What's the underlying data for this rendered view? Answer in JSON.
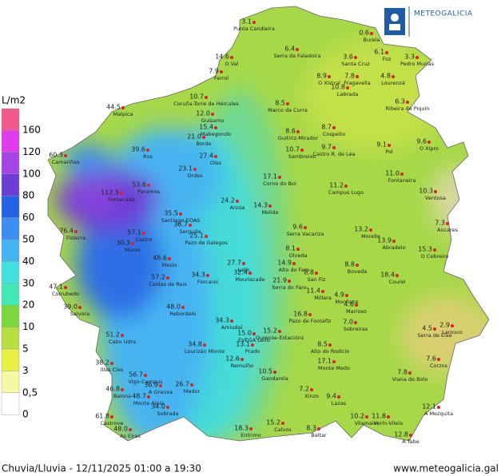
{
  "header": {
    "logo": "METEOGALICIA"
  },
  "legend": {
    "title": "L/m2",
    "labels": [
      "160",
      "120",
      "100",
      "80",
      "60",
      "50",
      "40",
      "30",
      "20",
      "10",
      "5",
      "3",
      "0,5",
      "0"
    ],
    "colors": [
      "#f25a8c",
      "#e03cec",
      "#a444e4",
      "#6c3ed6",
      "#2462e6",
      "#3c8ef0",
      "#46b4f2",
      "#44e0e0",
      "#44e8b4",
      "#7cd63e",
      "#b6e042",
      "#e8f044",
      "#f8f8a4",
      "#ffffff"
    ]
  },
  "stations": [
    {
      "value": "3.1",
      "name": "Punta Candieira"
    },
    {
      "value": "0.6",
      "name": "Burela"
    },
    {
      "value": "6.4",
      "name": "Serra da Faladoira"
    },
    {
      "value": "14.6",
      "name": "O Val"
    },
    {
      "value": "7.9",
      "name": "Ferrol"
    },
    {
      "value": "3.6",
      "name": "Santa Cruz"
    },
    {
      "value": "6.1",
      "name": "Foz"
    },
    {
      "value": "3.3",
      "name": "Pedro Murias"
    },
    {
      "value": "8.9",
      "name": "O Xistral"
    },
    {
      "value": "7.8",
      "name": "Fragavella"
    },
    {
      "value": "4.8",
      "name": "Lourenzá"
    },
    {
      "value": "10.8",
      "name": "Labrada"
    },
    {
      "value": "10.7",
      "name": "Coruña-Torre de Hércules"
    },
    {
      "value": "6.3",
      "name": "Ribeira de Piquín"
    },
    {
      "value": "8.5",
      "name": "Marco da Curra"
    },
    {
      "value": "44.5",
      "name": "Malpica"
    },
    {
      "value": "12.0",
      "name": "Guísamo"
    },
    {
      "value": "8.7",
      "name": "Cospeito"
    },
    {
      "value": "15.4",
      "name": "Mabegondo"
    },
    {
      "value": "8.6",
      "name": "Guitiriz-Mirador"
    },
    {
      "value": "21.0",
      "name": "Borde"
    },
    {
      "value": "39.6",
      "name": "Rus"
    },
    {
      "value": "9.7",
      "name": "Castro R. de Lea"
    },
    {
      "value": "9.1",
      "name": "Pol"
    },
    {
      "value": "9.6",
      "name": "O Xipro"
    },
    {
      "value": "10.7",
      "name": "Sambreixo"
    },
    {
      "value": "27.4",
      "name": "Olas"
    },
    {
      "value": "60.3",
      "name": "Camariñas"
    },
    {
      "value": "23.1",
      "name": "Ordes"
    },
    {
      "value": "17.1",
      "name": "Corno do Boi"
    },
    {
      "value": "11.0",
      "name": "Fontaneira"
    },
    {
      "value": "53.6",
      "name": "Paramos"
    },
    {
      "value": "112.5",
      "name": "Fontecada"
    },
    {
      "value": "11.2",
      "name": "Campus Lugo"
    },
    {
      "value": "10.3",
      "name": "Ventosa"
    },
    {
      "value": "24.2",
      "name": "Arzúa"
    },
    {
      "value": "14.3",
      "name": "Melide"
    },
    {
      "value": "35.5",
      "name": "Santiago-EOAS"
    },
    {
      "value": "36.7",
      "name": "Sergude"
    },
    {
      "value": "25.1",
      "name": "Pazo de Galegos"
    },
    {
      "value": "9.6",
      "name": "Serra Vacariza"
    },
    {
      "value": "13.2",
      "name": "Morelle"
    },
    {
      "value": "7.3",
      "name": "Ancares"
    },
    {
      "value": "76.4",
      "name": "Fisterra"
    },
    {
      "value": "57.1",
      "name": "Castro"
    },
    {
      "value": "13.9",
      "name": "Abradelo"
    },
    {
      "value": "8.1",
      "name": "Olveda"
    },
    {
      "value": "15.3",
      "name": "O Cebreiro"
    },
    {
      "value": "30.3",
      "name": "Muros"
    },
    {
      "value": "48.6",
      "name": "Mesio"
    },
    {
      "value": "14.9",
      "name": "Alto do Faro"
    },
    {
      "value": "8.8",
      "name": "Boveda"
    },
    {
      "value": "27.7",
      "name": "Lalín"
    },
    {
      "value": "34.3",
      "name": "Forcarei"
    },
    {
      "value": "32.4",
      "name": "Mouriscade"
    },
    {
      "value": "57.2",
      "name": "Caldas de Reis"
    },
    {
      "value": "8.8",
      "name": "San Fiz"
    },
    {
      "value": "18.4",
      "name": "Courel"
    },
    {
      "value": "47.1",
      "name": "Corrubedo"
    },
    {
      "value": "21.9",
      "name": "Serra do Faro"
    },
    {
      "value": "11.4",
      "name": "Millara"
    },
    {
      "value": "4.9",
      "name": "Monforte"
    },
    {
      "value": "4.6",
      "name": "Marroxo"
    },
    {
      "value": "39.0",
      "name": "Salvora"
    },
    {
      "value": "48.0",
      "name": "Rebordelo"
    },
    {
      "value": "34.3",
      "name": "Amiudal"
    },
    {
      "value": "16.8",
      "name": "Pazo de Fontefiz"
    },
    {
      "value": "15.0",
      "name": "EVEGA Leiro"
    },
    {
      "value": "15.2",
      "name": "Ourense-Estacións"
    },
    {
      "value": "7.0",
      "name": "Sobreiras"
    },
    {
      "value": "4.5",
      "name": "Serra de Eixe"
    },
    {
      "value": "2.9",
      "name": "Larouco"
    },
    {
      "value": "51.2",
      "name": "Cabo Udra"
    },
    {
      "value": "34.8",
      "name": "Lourizán Monte"
    },
    {
      "value": "13.1",
      "name": "Prado"
    },
    {
      "value": "8.5",
      "name": "Alto do Rodicio"
    },
    {
      "value": "38.2",
      "name": "Illas Cíes"
    },
    {
      "value": "12.6",
      "name": "Remuíño"
    },
    {
      "value": "17.1",
      "name": "Monte Medo"
    },
    {
      "value": "7.6",
      "name": "Corzos"
    },
    {
      "value": "56.7",
      "name": "Vigo-Campus"
    },
    {
      "value": "10.5",
      "name": "Gandarela"
    },
    {
      "value": "7.8",
      "name": "Viana do Bolo"
    },
    {
      "value": "36.9",
      "name": "A Granxa"
    },
    {
      "value": "26.7",
      "name": "Medor"
    },
    {
      "value": "46.8",
      "name": "Baiona"
    },
    {
      "value": "7.2",
      "name": "Xinzo"
    },
    {
      "value": "9.4",
      "name": "Lazas"
    },
    {
      "value": "48.7",
      "name": "Monte Aloia"
    },
    {
      "value": "34.0",
      "name": "Sobrada"
    },
    {
      "value": "12.1",
      "name": "A Mezquita"
    },
    {
      "value": "61.8",
      "name": "Castrove"
    },
    {
      "value": "10.2",
      "name": "Vilamaior"
    },
    {
      "value": "11.8",
      "name": "Verín-Vilela"
    },
    {
      "value": "18.3",
      "name": "Entrimo"
    },
    {
      "value": "15.2",
      "name": "Calvos"
    },
    {
      "value": "8.3",
      "name": "Baltar"
    },
    {
      "value": "48.0",
      "name": "As Eiras"
    },
    {
      "value": "12.8",
      "name": "A Tabe"
    }
  ],
  "footer": {
    "caption": "Chuvia/Lluvia - 12/11/2025 01:00 a 19:30",
    "url": "www.meteogalicia.gal"
  }
}
